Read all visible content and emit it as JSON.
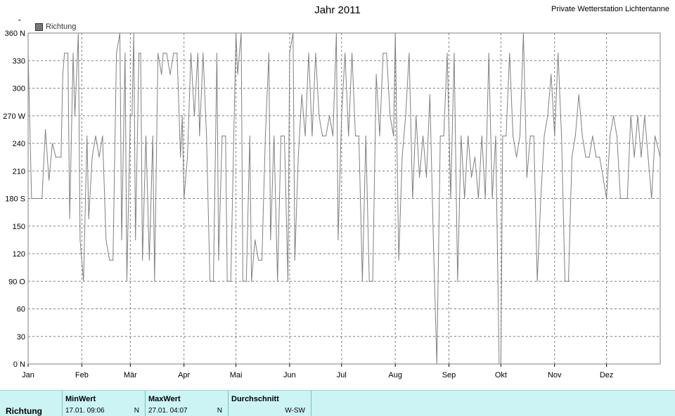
{
  "header": {
    "title": "Jahr 2011",
    "station": "Private Wetterstation Lichtentanne",
    "unit_mark": "°"
  },
  "colors": {
    "line": "#808080",
    "grid": "#808080",
    "table_bg": "#ccf4f4"
  },
  "chart_data": {
    "type": "line",
    "legend": "Richtung",
    "legend_position": "top-left",
    "grid": true,
    "ylim": [
      0,
      360
    ],
    "xlim": [
      0,
      365
    ],
    "yticks": [
      {
        "value": 360,
        "label": "360 N"
      },
      {
        "value": 330,
        "label": "330"
      },
      {
        "value": 300,
        "label": "300"
      },
      {
        "value": 270,
        "label": "270 W"
      },
      {
        "value": 240,
        "label": "240"
      },
      {
        "value": 210,
        "label": "210"
      },
      {
        "value": 180,
        "label": "180 S"
      },
      {
        "value": 150,
        "label": "150"
      },
      {
        "value": 120,
        "label": "120"
      },
      {
        "value": 90,
        "label": "90  O"
      },
      {
        "value": 60,
        "label": "60"
      },
      {
        "value": 30,
        "label": "30"
      },
      {
        "value": 0,
        "label": "0   N"
      }
    ],
    "xticks": [
      {
        "day": 0,
        "label": "Jan"
      },
      {
        "day": 31,
        "label": "Feb"
      },
      {
        "day": 59,
        "label": "Mär"
      },
      {
        "day": 90,
        "label": "Apr"
      },
      {
        "day": 120,
        "label": "Mai"
      },
      {
        "day": 151,
        "label": "Jun"
      },
      {
        "day": 181,
        "label": "Jul"
      },
      {
        "day": 212,
        "label": "Aug"
      },
      {
        "day": 243,
        "label": "Sep"
      },
      {
        "day": 273,
        "label": "Okt"
      },
      {
        "day": 304,
        "label": "Nov"
      },
      {
        "day": 334,
        "label": "Dez"
      }
    ],
    "series": [
      {
        "name": "Richtung",
        "values": [
          {
            "day": 0,
            "value": 338
          },
          {
            "day": 2,
            "value": 180
          },
          {
            "day": 5,
            "value": 180
          },
          {
            "day": 8,
            "value": 180
          },
          {
            "day": 10,
            "value": 255
          },
          {
            "day": 12,
            "value": 200
          },
          {
            "day": 14,
            "value": 240
          },
          {
            "day": 16,
            "value": 225
          },
          {
            "day": 19,
            "value": 225
          },
          {
            "day": 20,
            "value": 315
          },
          {
            "day": 21,
            "value": 338
          },
          {
            "day": 23,
            "value": 338
          },
          {
            "day": 24,
            "value": 158
          },
          {
            "day": 26,
            "value": 338
          },
          {
            "day": 27,
            "value": 270
          },
          {
            "day": 29,
            "value": 360
          },
          {
            "day": 30,
            "value": 135
          },
          {
            "day": 32,
            "value": 90
          },
          {
            "day": 34,
            "value": 248
          },
          {
            "day": 35,
            "value": 158
          },
          {
            "day": 37,
            "value": 225
          },
          {
            "day": 39,
            "value": 248
          },
          {
            "day": 41,
            "value": 225
          },
          {
            "day": 43,
            "value": 248
          },
          {
            "day": 45,
            "value": 135
          },
          {
            "day": 47,
            "value": 113
          },
          {
            "day": 49,
            "value": 113
          },
          {
            "day": 51,
            "value": 338
          },
          {
            "day": 53,
            "value": 360
          },
          {
            "day": 54,
            "value": 135
          },
          {
            "day": 56,
            "value": 338
          },
          {
            "day": 57,
            "value": 90
          },
          {
            "day": 59,
            "value": 270
          },
          {
            "day": 60,
            "value": 270
          },
          {
            "day": 61,
            "value": 360
          },
          {
            "day": 62,
            "value": 135
          },
          {
            "day": 64,
            "value": 338
          },
          {
            "day": 65,
            "value": 338
          },
          {
            "day": 66,
            "value": 113
          },
          {
            "day": 68,
            "value": 248
          },
          {
            "day": 70,
            "value": 113
          },
          {
            "day": 72,
            "value": 248
          },
          {
            "day": 73,
            "value": 90
          },
          {
            "day": 75,
            "value": 338
          },
          {
            "day": 77,
            "value": 315
          },
          {
            "day": 78,
            "value": 338
          },
          {
            "day": 80,
            "value": 338
          },
          {
            "day": 82,
            "value": 315
          },
          {
            "day": 84,
            "value": 338
          },
          {
            "day": 86,
            "value": 338
          },
          {
            "day": 88,
            "value": 225
          },
          {
            "day": 89,
            "value": 270
          },
          {
            "day": 90,
            "value": 180
          },
          {
            "day": 92,
            "value": 225
          },
          {
            "day": 94,
            "value": 338
          },
          {
            "day": 96,
            "value": 270
          },
          {
            "day": 98,
            "value": 338
          },
          {
            "day": 99,
            "value": 248
          },
          {
            "day": 101,
            "value": 338
          },
          {
            "day": 103,
            "value": 248
          },
          {
            "day": 105,
            "value": 90
          },
          {
            "day": 107,
            "value": 90
          },
          {
            "day": 109,
            "value": 338
          },
          {
            "day": 110,
            "value": 113
          },
          {
            "day": 112,
            "value": 248
          },
          {
            "day": 114,
            "value": 248
          },
          {
            "day": 115,
            "value": 90
          },
          {
            "day": 117,
            "value": 90
          },
          {
            "day": 120,
            "value": 360
          },
          {
            "day": 121,
            "value": 315
          },
          {
            "day": 123,
            "value": 360
          },
          {
            "day": 124,
            "value": 90
          },
          {
            "day": 126,
            "value": 90
          },
          {
            "day": 128,
            "value": 248
          },
          {
            "day": 129,
            "value": 90
          },
          {
            "day": 131,
            "value": 135
          },
          {
            "day": 133,
            "value": 113
          },
          {
            "day": 135,
            "value": 113
          },
          {
            "day": 137,
            "value": 248
          },
          {
            "day": 139,
            "value": 338
          },
          {
            "day": 140,
            "value": 135
          },
          {
            "day": 142,
            "value": 248
          },
          {
            "day": 144,
            "value": 90
          },
          {
            "day": 146,
            "value": 248
          },
          {
            "day": 148,
            "value": 248
          },
          {
            "day": 150,
            "value": 90
          },
          {
            "day": 151,
            "value": 338
          },
          {
            "day": 153,
            "value": 360
          },
          {
            "day": 154,
            "value": 113
          },
          {
            "day": 156,
            "value": 225
          },
          {
            "day": 158,
            "value": 293
          },
          {
            "day": 160,
            "value": 248
          },
          {
            "day": 162,
            "value": 338
          },
          {
            "day": 164,
            "value": 248
          },
          {
            "day": 166,
            "value": 338
          },
          {
            "day": 168,
            "value": 270
          },
          {
            "day": 170,
            "value": 248
          },
          {
            "day": 172,
            "value": 248
          },
          {
            "day": 174,
            "value": 270
          },
          {
            "day": 176,
            "value": 248
          },
          {
            "day": 178,
            "value": 360
          },
          {
            "day": 179,
            "value": 135
          },
          {
            "day": 181,
            "value": 270
          },
          {
            "day": 183,
            "value": 338
          },
          {
            "day": 185,
            "value": 248
          },
          {
            "day": 187,
            "value": 338
          },
          {
            "day": 189,
            "value": 248
          },
          {
            "day": 191,
            "value": 248
          },
          {
            "day": 193,
            "value": 90
          },
          {
            "day": 195,
            "value": 248
          },
          {
            "day": 197,
            "value": 90
          },
          {
            "day": 199,
            "value": 90
          },
          {
            "day": 201,
            "value": 315
          },
          {
            "day": 203,
            "value": 248
          },
          {
            "day": 205,
            "value": 338
          },
          {
            "day": 207,
            "value": 338
          },
          {
            "day": 209,
            "value": 270
          },
          {
            "day": 211,
            "value": 248
          },
          {
            "day": 212,
            "value": 360
          },
          {
            "day": 214,
            "value": 113
          },
          {
            "day": 216,
            "value": 225
          },
          {
            "day": 218,
            "value": 270
          },
          {
            "day": 220,
            "value": 338
          },
          {
            "day": 222,
            "value": 180
          },
          {
            "day": 224,
            "value": 270
          },
          {
            "day": 226,
            "value": 203
          },
          {
            "day": 228,
            "value": 248
          },
          {
            "day": 230,
            "value": 203
          },
          {
            "day": 232,
            "value": 293
          },
          {
            "day": 234,
            "value": 135
          },
          {
            "day": 236,
            "value": 0
          },
          {
            "day": 238,
            "value": 248
          },
          {
            "day": 240,
            "value": 248
          },
          {
            "day": 242,
            "value": 338
          },
          {
            "day": 244,
            "value": 180
          },
          {
            "day": 246,
            "value": 338
          },
          {
            "day": 248,
            "value": 90
          },
          {
            "day": 250,
            "value": 248
          },
          {
            "day": 252,
            "value": 180
          },
          {
            "day": 254,
            "value": 248
          },
          {
            "day": 256,
            "value": 203
          },
          {
            "day": 258,
            "value": 225
          },
          {
            "day": 260,
            "value": 180
          },
          {
            "day": 262,
            "value": 248
          },
          {
            "day": 264,
            "value": 180
          },
          {
            "day": 266,
            "value": 338
          },
          {
            "day": 268,
            "value": 180
          },
          {
            "day": 270,
            "value": 248
          },
          {
            "day": 272,
            "value": 0
          },
          {
            "day": 273,
            "value": 0
          },
          {
            "day": 274,
            "value": 248
          },
          {
            "day": 276,
            "value": 248
          },
          {
            "day": 278,
            "value": 338
          },
          {
            "day": 280,
            "value": 248
          },
          {
            "day": 282,
            "value": 225
          },
          {
            "day": 284,
            "value": 248
          },
          {
            "day": 286,
            "value": 360
          },
          {
            "day": 288,
            "value": 203
          },
          {
            "day": 290,
            "value": 248
          },
          {
            "day": 292,
            "value": 248
          },
          {
            "day": 294,
            "value": 90
          },
          {
            "day": 296,
            "value": 180
          },
          {
            "day": 298,
            "value": 248
          },
          {
            "day": 300,
            "value": 270
          },
          {
            "day": 302,
            "value": 315
          },
          {
            "day": 304,
            "value": 248
          },
          {
            "day": 306,
            "value": 338
          },
          {
            "day": 308,
            "value": 248
          },
          {
            "day": 310,
            "value": 90
          },
          {
            "day": 312,
            "value": 90
          },
          {
            "day": 314,
            "value": 225
          },
          {
            "day": 316,
            "value": 248
          },
          {
            "day": 318,
            "value": 293
          },
          {
            "day": 320,
            "value": 248
          },
          {
            "day": 322,
            "value": 225
          },
          {
            "day": 324,
            "value": 225
          },
          {
            "day": 326,
            "value": 248
          },
          {
            "day": 328,
            "value": 225
          },
          {
            "day": 330,
            "value": 225
          },
          {
            "day": 332,
            "value": 203
          },
          {
            "day": 334,
            "value": 180
          },
          {
            "day": 336,
            "value": 248
          },
          {
            "day": 338,
            "value": 270
          },
          {
            "day": 340,
            "value": 248
          },
          {
            "day": 342,
            "value": 180
          },
          {
            "day": 344,
            "value": 180
          },
          {
            "day": 346,
            "value": 180
          },
          {
            "day": 348,
            "value": 270
          },
          {
            "day": 350,
            "value": 225
          },
          {
            "day": 352,
            "value": 270
          },
          {
            "day": 354,
            "value": 225
          },
          {
            "day": 356,
            "value": 270
          },
          {
            "day": 358,
            "value": 225
          },
          {
            "day": 360,
            "value": 180
          },
          {
            "day": 362,
            "value": 248
          },
          {
            "day": 365,
            "value": 225
          }
        ]
      }
    ]
  },
  "table": {
    "row_label": "Richtung",
    "columns": [
      {
        "header": "MinWert",
        "value": "17.01.  09:06",
        "unit": "N"
      },
      {
        "header": "MaxWert",
        "value": "27.01.  04:07",
        "unit": "N"
      },
      {
        "header": "Durchschnitt",
        "value": "W-SW"
      }
    ]
  }
}
